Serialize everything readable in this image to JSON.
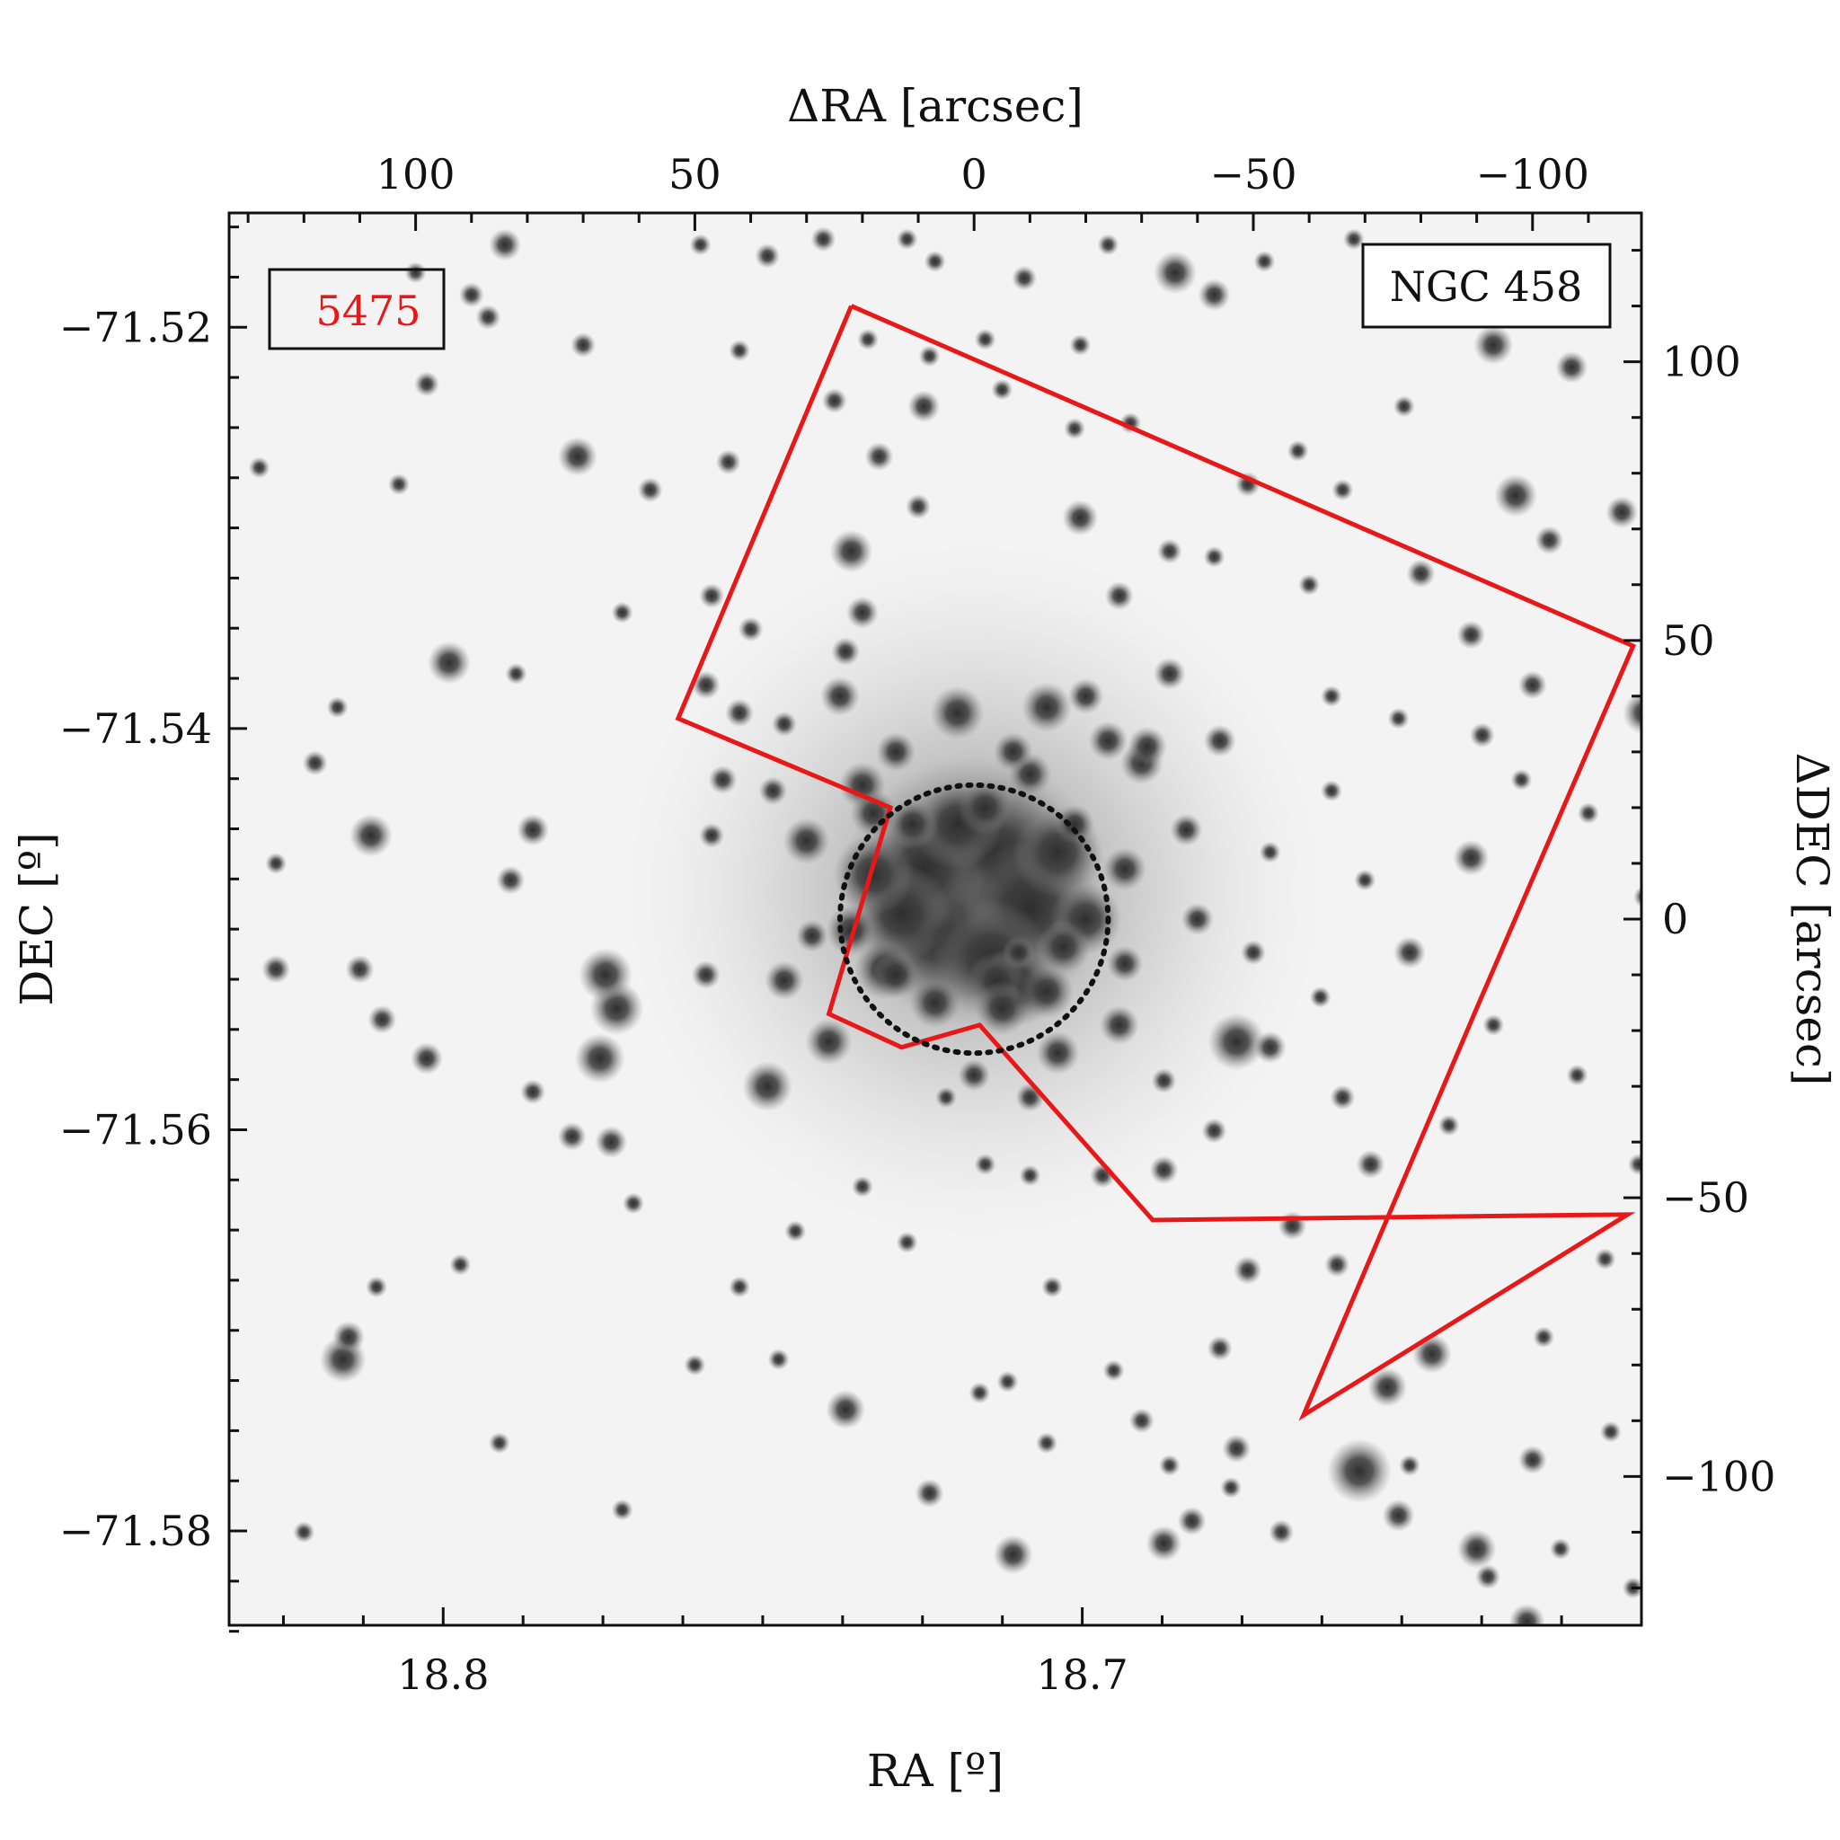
{
  "figure": {
    "field_id": "5475",
    "cluster_name": "NGC 458",
    "colors": {
      "footprint": "#e81818",
      "field_id_text": "#e81818",
      "core_circle": "#111111",
      "frame": "#111111",
      "sky_background": "#f3f3f3",
      "stars": "#2e2e2e"
    }
  },
  "chart_data": {
    "type": "scatter",
    "xlabel_bottom": "RA [º]",
    "ylabel_left": "DEC [º]",
    "xlabel_top": "ΔRA [arcsec]",
    "ylabel_right": "ΔDEC [arcsec]",
    "center": {
      "ra": 18.7165,
      "dec": -71.5495
    },
    "xlim_ra": [
      18.8335,
      18.6125
    ],
    "ylim_dec": [
      -71.5847,
      -71.5143
    ],
    "xlim_dra_arcsec": [
      133.4,
      -119.5
    ],
    "ylim_ddec_arcsec": [
      126.7,
      -126.7
    ],
    "ticks": {
      "ra": {
        "values": [
          18.8,
          18.7
        ],
        "labels": [
          "18.8",
          "18.7"
        ]
      },
      "dec": {
        "values": [
          -71.52,
          -71.54,
          -71.56,
          -71.58
        ],
        "labels": [
          "−71.52",
          "−71.54",
          "−71.56",
          "−71.58"
        ]
      },
      "dra": {
        "values": [
          100,
          50,
          0,
          -50,
          -100
        ],
        "labels": [
          "100",
          "50",
          "0",
          "−50",
          "−100"
        ]
      },
      "ddec": {
        "values": [
          100,
          50,
          0,
          -50,
          -100
        ],
        "labels": [
          "100",
          "50",
          "0",
          "−50",
          "−100"
        ]
      }
    },
    "footprint_outline_arcsec": [
      [
        22,
        110
      ],
      [
        -118,
        49
      ],
      [
        -90,
        -16
      ],
      [
        -59,
        -89
      ],
      [
        -117,
        -53
      ],
      [
        -32,
        -54
      ],
      [
        -1,
        -19
      ],
      [
        13,
        -23
      ],
      [
        26,
        -17
      ],
      [
        15,
        20
      ],
      [
        53,
        36
      ],
      [
        22,
        110
      ]
    ],
    "core_radius_arcsec": 24,
    "stars": [
      [
        0,
        5,
        150
      ],
      [
        -4,
        10,
        95
      ],
      [
        6,
        -2,
        85
      ],
      [
        -10,
        2,
        75
      ],
      [
        9,
        9,
        70
      ],
      [
        -3,
        -7,
        65
      ],
      [
        13,
        1,
        55
      ],
      [
        -15,
        12,
        50
      ],
      [
        3,
        17,
        50
      ],
      [
        -8,
        -12,
        45
      ],
      [
        18,
        8,
        45
      ],
      [
        -20,
        0,
        40
      ],
      [
        -4,
        -11,
        32
      ],
      [
        16,
        -9,
        34
      ],
      [
        -13,
        -13,
        30
      ],
      [
        7,
        -15,
        28
      ],
      [
        -2,
        20,
        30
      ],
      [
        11,
        17,
        28
      ],
      [
        -16,
        -5,
        30
      ],
      [
        22,
        -2,
        28
      ],
      [
        -10,
        26,
        24
      ],
      [
        3,
        37,
        30
      ],
      [
        -13,
        38,
        28
      ],
      [
        -30,
        28,
        24
      ],
      [
        -31,
        31,
        22
      ],
      [
        -24,
        32,
        22
      ],
      [
        20,
        24,
        26
      ],
      [
        30,
        14,
        26
      ],
      [
        -27,
        9,
        24
      ],
      [
        14,
        30,
        22
      ],
      [
        -7,
        30,
        22
      ],
      [
        -20,
        40,
        20
      ],
      [
        -18,
        17,
        22
      ],
      [
        -27,
        -8,
        20
      ],
      [
        -38,
        16,
        18
      ],
      [
        -40,
        0,
        18
      ],
      [
        29,
        -3,
        18
      ],
      [
        -26,
        -19,
        22
      ],
      [
        -5,
        -16,
        30
      ],
      [
        14,
        -10,
        26
      ],
      [
        -15,
        -24,
        24
      ],
      [
        -47,
        -22,
        32
      ],
      [
        64,
        -16,
        30
      ],
      [
        34,
        -11,
        22
      ],
      [
        26,
        -22,
        26
      ],
      [
        37,
        -30,
        28
      ],
      [
        18,
        19,
        26
      ],
      [
        -35,
        44,
        18
      ],
      [
        24,
        40,
        22
      ],
      [
        -44,
        32,
        18
      ],
      [
        0,
        -28,
        18
      ],
      [
        -10,
        -32,
        16
      ],
      [
        -91,
        33,
        14
      ],
      [
        -120,
        37,
        24
      ],
      [
        -36,
        116,
        24
      ],
      [
        -43,
        112,
        18
      ],
      [
        -93,
        103,
        22
      ],
      [
        -107,
        99,
        18
      ],
      [
        -97,
        76,
        24
      ],
      [
        -116,
        73,
        18
      ],
      [
        -103,
        68,
        16
      ],
      [
        -80,
        62,
        16
      ],
      [
        -89,
        51,
        16
      ],
      [
        -100,
        42,
        16
      ],
      [
        -89,
        11,
        20
      ],
      [
        -78,
        -6,
        18
      ],
      [
        -53,
        -23,
        18
      ],
      [
        -71,
        -44,
        16
      ],
      [
        -65,
        -62,
        14
      ],
      [
        -49,
        -63,
        16
      ],
      [
        -44,
        -77,
        14
      ],
      [
        -82,
        -78,
        22
      ],
      [
        -74,
        -84,
        22
      ],
      [
        -69,
        -99,
        36
      ],
      [
        -90,
        -113,
        22
      ],
      [
        -99,
        -126,
        20
      ],
      [
        -100,
        -97,
        16
      ],
      [
        -76,
        -107,
        18
      ],
      [
        -39,
        -108,
        16
      ],
      [
        -34,
        -112,
        20
      ],
      [
        -30,
        -90,
        14
      ],
      [
        -47,
        -95,
        16
      ],
      [
        -57,
        -55,
        16
      ],
      [
        -34,
        -45,
        16
      ],
      [
        -43,
        -38,
        14
      ],
      [
        -23,
        -46,
        14
      ],
      [
        -34,
        -29,
        14
      ],
      [
        -26,
        58,
        16
      ],
      [
        -35,
        66,
        14
      ],
      [
        -19,
        72,
        20
      ],
      [
        -49,
        78,
        14
      ],
      [
        -43,
        65,
        12
      ],
      [
        -58,
        84,
        12
      ],
      [
        -60,
        60,
        12
      ],
      [
        -64,
        40,
        12
      ],
      [
        -18,
        88,
        12
      ],
      [
        -5,
        95,
        12
      ],
      [
        -19,
        103,
        12
      ],
      [
        -9,
        115,
        14
      ],
      [
        8,
        101,
        12
      ],
      [
        -28,
        89,
        12
      ],
      [
        22,
        66,
        24
      ],
      [
        20,
        55,
        18
      ],
      [
        23,
        48,
        16
      ],
      [
        17,
        83,
        16
      ],
      [
        9,
        92,
        18
      ],
      [
        10,
        74,
        14
      ],
      [
        25,
        93,
        14
      ],
      [
        19,
        104,
        12
      ],
      [
        27,
        122,
        14
      ],
      [
        12,
        122,
        12
      ],
      [
        40,
        52,
        14
      ],
      [
        42,
        37,
        16
      ],
      [
        45,
        25,
        16
      ],
      [
        48,
        42,
        16
      ],
      [
        47,
        15,
        14
      ],
      [
        34,
        35,
        14
      ],
      [
        36,
        23,
        16
      ],
      [
        94,
        46,
        24
      ],
      [
        71,
        83,
        22
      ],
      [
        47,
        58,
        14
      ],
      [
        42,
        102,
        12
      ],
      [
        58,
        77,
        14
      ],
      [
        44,
        82,
        14
      ],
      [
        125,
        10,
        12
      ],
      [
        108,
        15,
        24
      ],
      [
        79,
        16,
        18
      ],
      [
        83,
        7,
        16
      ],
      [
        66,
        -10,
        30
      ],
      [
        48,
        -10,
        16
      ],
      [
        67,
        -25,
        28
      ],
      [
        98,
        -25,
        18
      ],
      [
        106,
        -18,
        16
      ],
      [
        110,
        -9,
        16
      ],
      [
        125,
        -9,
        16
      ],
      [
        65,
        -40,
        18
      ],
      [
        72,
        -39,
        16
      ],
      [
        79,
        -31,
        14
      ],
      [
        113,
        -79,
        26
      ],
      [
        112,
        -75,
        18
      ],
      [
        23,
        -88,
        22
      ],
      [
        8,
        -103,
        16
      ],
      [
        -7,
        -114,
        22
      ],
      [
        -35,
        -98,
        12
      ],
      [
        -46,
        -102,
        12
      ],
      [
        -78,
        -98,
        12
      ],
      [
        -55,
        -110,
        14
      ],
      [
        -92,
        -118,
        14
      ],
      [
        -8,
        -6,
        18
      ],
      [
        5,
        -32,
        12
      ],
      [
        -2,
        -44,
        12
      ],
      [
        -10,
        -46,
        12
      ],
      [
        12,
        -58,
        12
      ],
      [
        -14,
        -66,
        12
      ],
      [
        -6,
        -83,
        12
      ],
      [
        20,
        -48,
        12
      ],
      [
        32,
        -56,
        12
      ],
      [
        42,
        -66,
        12
      ],
      [
        61,
        -51,
        12
      ],
      [
        35,
        -79,
        12
      ],
      [
        50,
        -80,
        12
      ],
      [
        92,
        -62,
        12
      ],
      [
        107,
        -66,
        12
      ],
      [
        85,
        -94,
        12
      ],
      [
        63,
        -106,
        12
      ],
      [
        120,
        -110,
        12
      ],
      [
        100,
        116,
        12
      ],
      [
        90,
        112,
        14
      ],
      [
        87,
        108,
        14
      ],
      [
        84,
        121,
        18
      ],
      [
        49,
        121,
        12
      ],
      [
        37,
        119,
        14
      ],
      [
        7,
        118,
        12
      ],
      [
        -2,
        104,
        12
      ],
      [
        70,
        103,
        14
      ],
      [
        98,
        96,
        14
      ],
      [
        128,
        81,
        12
      ],
      [
        103,
        78,
        12
      ],
      [
        63,
        55,
        12
      ],
      [
        82,
        44,
        12
      ],
      [
        114,
        38,
        12
      ],
      [
        118,
        28,
        14
      ],
      [
        -1,
        -85,
        12
      ],
      [
        -25,
        -81,
        12
      ],
      [
        -13,
        -94,
        12
      ],
      [
        -66,
        -32,
        14
      ],
      [
        -85,
        -37,
        12
      ],
      [
        -93,
        -19,
        12
      ],
      [
        -108,
        -28,
        12
      ],
      [
        -119,
        -44,
        12
      ],
      [
        -113,
        -61,
        12
      ],
      [
        -102,
        -75,
        12
      ],
      [
        -114,
        -92,
        12
      ],
      [
        -105,
        -113,
        12
      ],
      [
        -118,
        -120,
        12
      ],
      [
        -120,
        4,
        12
      ],
      [
        -110,
        19,
        12
      ],
      [
        -98,
        25,
        12
      ],
      [
        -76,
        36,
        12
      ],
      [
        -64,
        23,
        12
      ],
      [
        -53,
        12,
        12
      ],
      [
        -50,
        -6,
        14
      ],
      [
        -62,
        -14,
        12
      ],
      [
        -70,
        7,
        12
      ],
      [
        -66,
        77,
        12
      ],
      [
        -77,
        92,
        12
      ],
      [
        -82,
        110,
        12
      ],
      [
        -68,
        122,
        12
      ],
      [
        -52,
        118,
        12
      ],
      [
        -24,
        121,
        12
      ]
    ]
  }
}
